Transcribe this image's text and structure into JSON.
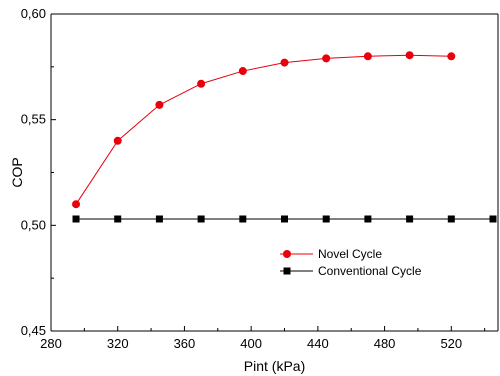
{
  "chart_data": {
    "type": "line",
    "title": "",
    "xlabel": "Pint (kPa)",
    "ylabel": "COP",
    "xlim": [
      280,
      548
    ],
    "ylim": [
      0.45,
      0.6
    ],
    "x_ticks": [
      280,
      320,
      360,
      400,
      440,
      480,
      520
    ],
    "y_ticks": [
      0.45,
      0.5,
      0.55,
      0.6
    ],
    "x_tick_labels": [
      "280",
      "320",
      "360",
      "400",
      "440",
      "480",
      "520"
    ],
    "y_tick_labels": [
      "0,45",
      "0,50",
      "0,55",
      "0,60"
    ],
    "grid": false,
    "legend_position": "center-right",
    "series": [
      {
        "name": "Novel Cycle",
        "color": "#e8000b",
        "marker": "circle",
        "x": [
          295,
          320,
          345,
          370,
          395,
          420,
          445,
          470,
          495,
          520
        ],
        "y": [
          0.51,
          0.54,
          0.557,
          0.567,
          0.573,
          0.577,
          0.579,
          0.58,
          0.5805,
          0.58
        ]
      },
      {
        "name": "Conventional Cycle",
        "color": "#000000",
        "marker": "square",
        "x": [
          295,
          320,
          345,
          370,
          395,
          420,
          445,
          470,
          495,
          520,
          545
        ],
        "y": [
          0.503,
          0.503,
          0.503,
          0.503,
          0.503,
          0.503,
          0.503,
          0.503,
          0.503,
          0.503,
          0.503
        ]
      }
    ]
  }
}
